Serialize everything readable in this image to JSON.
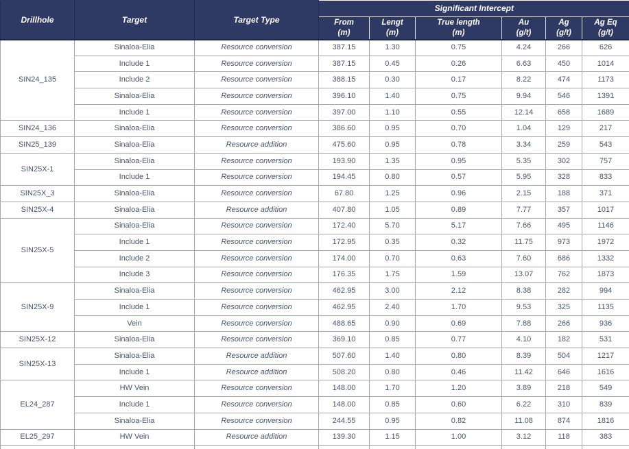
{
  "table": {
    "header": {
      "drillhole": "Drillhole",
      "target": "Target",
      "target_type": "Target Type",
      "intercept_group": "Significant Intercept",
      "columns": [
        {
          "key": "from",
          "label": "From",
          "unit": "(m)"
        },
        {
          "key": "length",
          "label": "Lengt",
          "unit": "(m)"
        },
        {
          "key": "true_length",
          "label": "True length",
          "unit": "(m)"
        },
        {
          "key": "au",
          "label": "Au",
          "unit": "(g/t)"
        },
        {
          "key": "ag",
          "label": "Ag",
          "unit": "(g/t)"
        },
        {
          "key": "ag_eq",
          "label": "Ag Eq",
          "unit": "(g/t)"
        }
      ]
    },
    "groups": [
      {
        "drillhole": "SIN24_135",
        "rows": [
          {
            "target": "Sinaloa-Elia",
            "type": "Resource conversion",
            "from": "387.15",
            "length": "1.30",
            "true_length": "0.75",
            "au": "4.24",
            "ag": "266",
            "ag_eq": "626"
          },
          {
            "target": "Include 1",
            "type": "Resource conversion",
            "from": "387.15",
            "length": "0.45",
            "true_length": "0.26",
            "au": "6.63",
            "ag": "450",
            "ag_eq": "1014"
          },
          {
            "target": "Include 2",
            "type": "Resource conversion",
            "from": "388.15",
            "length": "0.30",
            "true_length": "0.17",
            "au": "8.22",
            "ag": "474",
            "ag_eq": "1173"
          },
          {
            "target": "Sinaloa-Elia",
            "type": "Resource conversion",
            "from": "396.10",
            "length": "1.40",
            "true_length": "0.75",
            "au": "9.94",
            "ag": "546",
            "ag_eq": "1391"
          },
          {
            "target": "Include 1",
            "type": "Resource conversion",
            "from": "397.00",
            "length": "1.10",
            "true_length": "0.55",
            "au": "12.14",
            "ag": "658",
            "ag_eq": "1689"
          }
        ]
      },
      {
        "drillhole": "SIN24_136",
        "rows": [
          {
            "target": "Sinaloa-Elia",
            "type": "Resource conversion",
            "from": "386.60",
            "length": "0.95",
            "true_length": "0.70",
            "au": "1.04",
            "ag": "129",
            "ag_eq": "217"
          }
        ]
      },
      {
        "drillhole": "SIN25_139",
        "rows": [
          {
            "target": "Sinaloa-Elia",
            "type": "Resource addition",
            "from": "475.60",
            "length": "0.95",
            "true_length": "0.78",
            "au": "3.34",
            "ag": "259",
            "ag_eq": "543"
          }
        ]
      },
      {
        "drillhole": "SIN25X-1",
        "rows": [
          {
            "target": "Sinaloa-Elia",
            "type": "Resource conversion",
            "from": "193.90",
            "length": "1.35",
            "true_length": "0.95",
            "au": "5.35",
            "ag": "302",
            "ag_eq": "757"
          },
          {
            "target": "Include 1",
            "type": "Resource conversion",
            "from": "194.45",
            "length": "0.80",
            "true_length": "0.57",
            "au": "5.95",
            "ag": "328",
            "ag_eq": "833"
          }
        ]
      },
      {
        "drillhole": "SIN25X_3",
        "rows": [
          {
            "target": "Sinaloa-Elia",
            "type": "Resource conversion",
            "from": "67.80",
            "length": "1.25",
            "true_length": "0.96",
            "au": "2.15",
            "ag": "188",
            "ag_eq": "371"
          }
        ]
      },
      {
        "drillhole": "SIN25X-4",
        "rows": [
          {
            "target": "Sinaloa-Elia",
            "type": "Resource addition",
            "from": "407.80",
            "length": "1.05",
            "true_length": "0.89",
            "au": "7.77",
            "ag": "357",
            "ag_eq": "1017"
          }
        ]
      },
      {
        "drillhole": "SIN25X-5",
        "rows": [
          {
            "target": "Sinaloa-Elia",
            "type": "Resource conversion",
            "from": "172.40",
            "length": "5.70",
            "true_length": "5.17",
            "au": "7.66",
            "ag": "495",
            "ag_eq": "1146"
          },
          {
            "target": "Include 1",
            "type": "Resource conversion",
            "from": "172.95",
            "length": "0.35",
            "true_length": "0.32",
            "au": "11.75",
            "ag": "973",
            "ag_eq": "1972"
          },
          {
            "target": "Include 2",
            "type": "Resource conversion",
            "from": "174.00",
            "length": "0.70",
            "true_length": "0.63",
            "au": "7.60",
            "ag": "686",
            "ag_eq": "1332"
          },
          {
            "target": "Include 3",
            "type": "Resource conversion",
            "from": "176.35",
            "length": "1.75",
            "true_length": "1.59",
            "au": "13.07",
            "ag": "762",
            "ag_eq": "1873"
          }
        ]
      },
      {
        "drillhole": "SIN25X-9",
        "rows": [
          {
            "target": "Sinaloa-Elia",
            "type": "Resource conversion",
            "from": "462.95",
            "length": "3.00",
            "true_length": "2.12",
            "au": "8.38",
            "ag": "282",
            "ag_eq": "994"
          },
          {
            "target": "Include 1",
            "type": "Resource conversion",
            "from": "462.95",
            "length": "2.40",
            "true_length": "1.70",
            "au": "9.53",
            "ag": "325",
            "ag_eq": "1135"
          },
          {
            "target": "Vein",
            "type": "Resource conversion",
            "from": "488.65",
            "length": "0.90",
            "true_length": "0.69",
            "au": "7.88",
            "ag": "266",
            "ag_eq": "936"
          }
        ]
      },
      {
        "drillhole": "SIN25X-12",
        "rows": [
          {
            "target": "Sinaloa-Elia",
            "type": "Resource conversion",
            "from": "369.10",
            "length": "0.85",
            "true_length": "0.77",
            "au": "4.10",
            "ag": "182",
            "ag_eq": "531"
          }
        ]
      },
      {
        "drillhole": "SIN25X-13",
        "rows": [
          {
            "target": "Sinaloa-Elia",
            "type": "Resource addition",
            "from": "507.60",
            "length": "1.40",
            "true_length": "0.80",
            "au": "8.39",
            "ag": "504",
            "ag_eq": "1217"
          },
          {
            "target": "Include 1",
            "type": "Resource addition",
            "from": "508.20",
            "length": "0.80",
            "true_length": "0.46",
            "au": "11.42",
            "ag": "646",
            "ag_eq": "1616"
          }
        ]
      },
      {
        "drillhole": "EL24_287",
        "rows": [
          {
            "target": "HW Vein",
            "type": "Resource conversion",
            "from": "148.00",
            "length": "1.70",
            "true_length": "1.20",
            "au": "3.89",
            "ag": "218",
            "ag_eq": "549"
          },
          {
            "target": "Include 1",
            "type": "Resource conversion",
            "from": "148.00",
            "length": "0.85",
            "true_length": "0.60",
            "au": "6.22",
            "ag": "310",
            "ag_eq": "839"
          },
          {
            "target": "Sinaloa-Elia",
            "type": "Resource conversion",
            "from": "244.55",
            "length": "0.95",
            "true_length": "0.82",
            "au": "11.08",
            "ag": "874",
            "ag_eq": "1816"
          }
        ]
      },
      {
        "drillhole": "EL25_297",
        "rows": [
          {
            "target": "HW Vein",
            "type": "Resource addition",
            "from": "139.30",
            "length": "1.15",
            "true_length": "1.00",
            "au": "3.12",
            "ag": "118",
            "ag_eq": "383"
          }
        ]
      }
    ],
    "colors": {
      "header_bg": "#2e3a63",
      "header_text": "#ffffff",
      "body_text": "#44546a",
      "grid_border": "#a6a6a6",
      "header_divider": "#1f2956"
    }
  }
}
